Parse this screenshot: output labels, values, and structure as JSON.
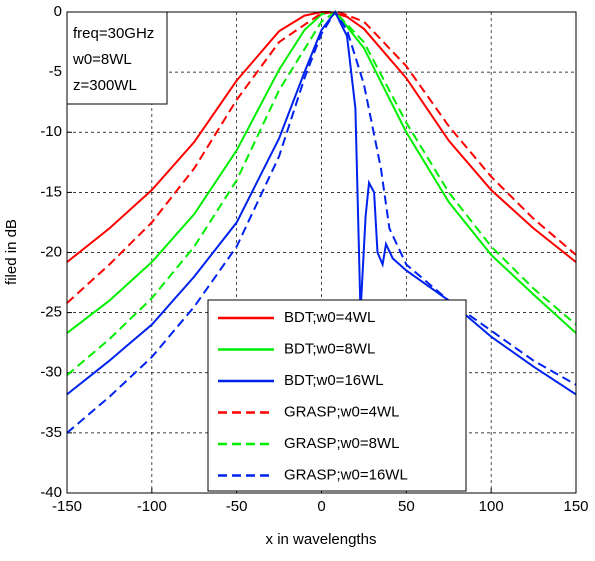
{
  "chart_data": {
    "type": "line",
    "xlabel": "x in wavelengths",
    "ylabel": "filed in dB",
    "annotations": [
      "freq=30GHz",
      "w0=8WL",
      "z=300WL"
    ],
    "xlim": [
      -150,
      150
    ],
    "xticks": [
      -150,
      -100,
      -50,
      0,
      50,
      100,
      150
    ],
    "ylim": [
      -40,
      0
    ],
    "yticks": [
      -40,
      -35,
      -30,
      -25,
      -20,
      -15,
      -10,
      -5,
      0
    ],
    "grid": true,
    "legend_loc": "lower center",
    "series": [
      {
        "name": "BDT;w0=4WL",
        "color": "#ff0000",
        "linestyle": "solid",
        "x": [
          -150,
          -125,
          -100,
          -75,
          -50,
          -25,
          -10,
          0,
          5,
          15,
          25,
          50,
          75,
          100,
          125,
          150
        ],
        "values": [
          -20.8,
          -18,
          -14.8,
          -10.8,
          -5.7,
          -1.6,
          -0.3,
          0,
          0,
          -0.4,
          -1.4,
          -5.5,
          -10.7,
          -14.8,
          -18,
          -20.8
        ]
      },
      {
        "name": "BDT;w0=8WL",
        "color": "#00ee00",
        "linestyle": "solid",
        "x": [
          -150,
          -125,
          -100,
          -75,
          -50,
          -25,
          -10,
          0,
          5,
          10,
          25,
          50,
          75,
          100,
          125,
          150
        ],
        "values": [
          -26.7,
          -24,
          -20.8,
          -16.8,
          -11.5,
          -4.8,
          -1.5,
          -0.2,
          0,
          -0.3,
          -3,
          -10,
          -15.8,
          -20.2,
          -23.5,
          -26.7
        ]
      },
      {
        "name": "BDT;w0=16WL",
        "color": "#0022ee",
        "linestyle": "solid",
        "x": [
          -150,
          -125,
          -100,
          -75,
          -50,
          -25,
          -10,
          0,
          8,
          15,
          20,
          23,
          26,
          28,
          31,
          33,
          36,
          38,
          42,
          50,
          75,
          100,
          125,
          150
        ],
        "values": [
          -31.8,
          -29,
          -26,
          -22,
          -17.5,
          -10.5,
          -5,
          -1.5,
          0,
          -2,
          -8,
          -25,
          -17,
          -14.2,
          -15,
          -20,
          -21,
          -19.3,
          -20.5,
          -21.5,
          -24,
          -27,
          -29.5,
          -31.8
        ]
      },
      {
        "name": "GRASP;w0=4WL",
        "color": "#ff0000",
        "linestyle": "dashed",
        "x": [
          -150,
          -125,
          -100,
          -75,
          -50,
          -25,
          0,
          10,
          25,
          50,
          75,
          100,
          125,
          150
        ],
        "values": [
          -24.2,
          -21,
          -17.5,
          -13,
          -7.3,
          -2.5,
          -0.1,
          0,
          -0.8,
          -4.5,
          -9.5,
          -13.7,
          -17.2,
          -20.2
        ]
      },
      {
        "name": "GRASP;w0=8WL",
        "color": "#00ee00",
        "linestyle": "dashed",
        "x": [
          -150,
          -125,
          -100,
          -75,
          -50,
          -25,
          0,
          8,
          25,
          50,
          75,
          100,
          125,
          150
        ],
        "values": [
          -30.2,
          -27.2,
          -23.8,
          -19.5,
          -14,
          -6.5,
          -0.8,
          0,
          -2.5,
          -9.2,
          -15,
          -19.5,
          -23,
          -26
        ]
      },
      {
        "name": "GRASP;w0=16WL",
        "color": "#0022ee",
        "linestyle": "dashed",
        "x": [
          -150,
          -125,
          -100,
          -75,
          -50,
          -25,
          -10,
          0,
          8,
          15,
          25,
          35,
          40,
          50,
          75,
          100,
          125,
          150
        ],
        "values": [
          -35,
          -32,
          -28.7,
          -24.5,
          -19.5,
          -12,
          -5.5,
          -1.8,
          0,
          -1.5,
          -6,
          -13,
          -18,
          -21,
          -24,
          -26.5,
          -29,
          -31
        ]
      }
    ]
  }
}
